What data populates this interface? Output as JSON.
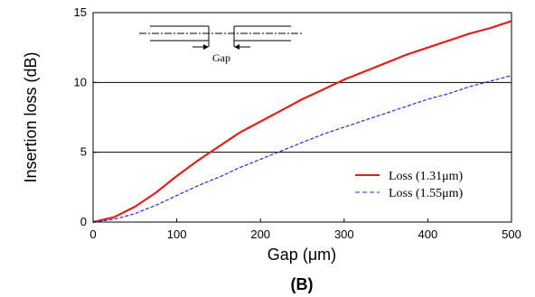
{
  "chart_data": {
    "type": "line",
    "title": "",
    "xlabel": "Gap (μm)",
    "ylabel": "Insertion loss (dB)",
    "panel_label": "(B)",
    "xlim": [
      0,
      500
    ],
    "ylim": [
      0,
      15
    ],
    "x_ticks": [
      0,
      100,
      200,
      300,
      400,
      500
    ],
    "y_ticks": [
      0,
      5,
      10,
      15
    ],
    "y_tick_labels": [
      "0",
      "5",
      "10",
      "15"
    ],
    "grid": "horizontal",
    "legend_position": "lower-right",
    "inset_label": "Gap",
    "series": [
      {
        "name": "Loss (1.31μm)",
        "color": "#e0201b",
        "style": "solid",
        "x": [
          0,
          25,
          50,
          75,
          100,
          125,
          150,
          175,
          200,
          225,
          250,
          275,
          300,
          325,
          350,
          375,
          400,
          425,
          450,
          475,
          500
        ],
        "y": [
          0,
          0.35,
          1.1,
          2.1,
          3.3,
          4.4,
          5.4,
          6.4,
          7.2,
          8.0,
          8.8,
          9.5,
          10.2,
          10.8,
          11.4,
          12.0,
          12.5,
          13.0,
          13.5,
          13.9,
          14.4
        ]
      },
      {
        "name": "Loss (1.55μm)",
        "color": "#2a2ae0",
        "style": "dashed",
        "x": [
          0,
          25,
          50,
          75,
          100,
          125,
          150,
          175,
          200,
          225,
          250,
          275,
          300,
          325,
          350,
          375,
          400,
          425,
          450,
          475,
          500
        ],
        "y": [
          0,
          0.2,
          0.6,
          1.2,
          1.9,
          2.6,
          3.2,
          3.9,
          4.5,
          5.1,
          5.7,
          6.3,
          6.8,
          7.3,
          7.8,
          8.3,
          8.8,
          9.2,
          9.7,
          10.1,
          10.5
        ]
      }
    ]
  }
}
